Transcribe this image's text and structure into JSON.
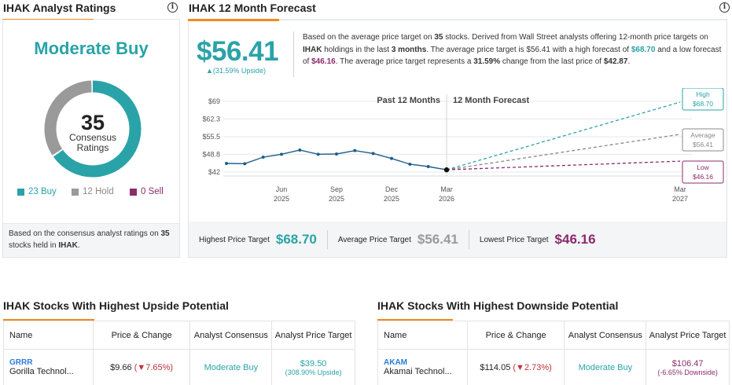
{
  "ratings": {
    "title": "IHAK Analyst Ratings",
    "consensus": "Moderate Buy",
    "total": "35",
    "center_label_1": "Consensus",
    "center_label_2": "Ratings",
    "buy": "23 Buy",
    "hold": "12 Hold",
    "sell": "0 Sell",
    "buy_count": 23,
    "hold_count": 12,
    "sell_count": 0,
    "footer_1": "Based on the consensus analyst ratings on",
    "footer_count": "35",
    "footer_2": "stocks held in",
    "footer_ticker": "IHAK",
    "footer_end": "."
  },
  "forecast": {
    "title": "IHAK 12 Month Forecast",
    "price": "$56.41",
    "upside": "▲(31.59% Upside)",
    "desc": {
      "p1": "Based on the average price target on ",
      "count": "35",
      "p2": " stocks. Derived from Wall Street analysts offering 12-month price targets on ",
      "ticker": "IHAK",
      "p3": " holdings in the last ",
      "period": "3 months",
      "p4": ". The average price target is $56.41 with a high forecast of ",
      "high": "$68.70",
      "p5": " and a low forecast of ",
      "low": "$46.16",
      "p6": ". The average price target represents a ",
      "change": "31.59%",
      "p7": " change from the last price of ",
      "last": "$42.87",
      "p8": "."
    },
    "stats": {
      "highest_label": "Highest Price Target",
      "highest": "$68.70",
      "average_label": "Average Price Target",
      "average": "$56.41",
      "lowest_label": "Lowest Price Target",
      "lowest": "$46.16"
    }
  },
  "chart_data": {
    "type": "line",
    "headers": [
      "Past 12 Months",
      "12 Month Forecast"
    ],
    "y_ticks": [
      "$69",
      "$62.3",
      "$55.5",
      "$48.8",
      "$42"
    ],
    "y_tick_values": [
      69,
      62.3,
      55.5,
      48.8,
      42
    ],
    "ylim": [
      42,
      69
    ],
    "x_ticks": [
      {
        "month": "Jun",
        "year": "2025",
        "t": 2
      },
      {
        "month": "Sep",
        "year": "2025",
        "t": 5
      },
      {
        "month": "Dec",
        "year": "2025",
        "t": 8
      },
      {
        "month": "Mar",
        "year": "2026",
        "t": 11
      },
      {
        "month": "Mar",
        "year": "2027",
        "t": 23
      }
    ],
    "history": [
      {
        "t": -1,
        "v": 45.3
      },
      {
        "t": 0,
        "v": 45.2
      },
      {
        "t": 1,
        "v": 47.7
      },
      {
        "t": 2,
        "v": 48.8
      },
      {
        "t": 3,
        "v": 50.4
      },
      {
        "t": 4,
        "v": 48.8
      },
      {
        "t": 5,
        "v": 48.9
      },
      {
        "t": 6,
        "v": 50.2
      },
      {
        "t": 7,
        "v": 49.1
      },
      {
        "t": 8,
        "v": 47.2
      },
      {
        "t": 9,
        "v": 45.0
      },
      {
        "t": 10,
        "v": 44.1
      },
      {
        "t": 11,
        "v": 42.87
      }
    ],
    "forecasts": [
      {
        "name": "High",
        "value": 68.7,
        "label": "$68.70",
        "color": "#2aa3a8"
      },
      {
        "name": "Average",
        "value": 56.41,
        "label": "$56.41",
        "color": "#888888"
      },
      {
        "name": "Low",
        "value": 46.16,
        "label": "$46.16",
        "color": "#8c2b6b"
      }
    ]
  },
  "upside_table": {
    "title": "IHAK Stocks With Highest Upside Potential",
    "headers": [
      "Name",
      "Price & Change",
      "Analyst Consensus",
      "Analyst Price Target"
    ],
    "rows": [
      {
        "ticker": "GRRR",
        "name": "Gorilla Technol...",
        "price": "$9.66",
        "change": "(▼7.65%)",
        "consensus": "Moderate Buy",
        "target": "$39.50",
        "target_sub": "(308.90% Upside)"
      }
    ]
  },
  "downside_table": {
    "title": "IHAK Stocks With Highest Downside Potential",
    "headers": [
      "Name",
      "Price & Change",
      "Analyst Consensus",
      "Analyst Price Target"
    ],
    "rows": [
      {
        "ticker": "AKAM",
        "name": "Akamai Technol...",
        "price": "$114.05",
        "change": "(▼2.73%)",
        "consensus": "Moderate Buy",
        "target": "$106.47",
        "target_sub": "(-6.65% Downside)"
      }
    ]
  },
  "colors": {
    "teal": "#2aa3a8",
    "hold": "#9a9a9a",
    "sell": "#8c2b6b",
    "accent": "#f28b1d"
  }
}
